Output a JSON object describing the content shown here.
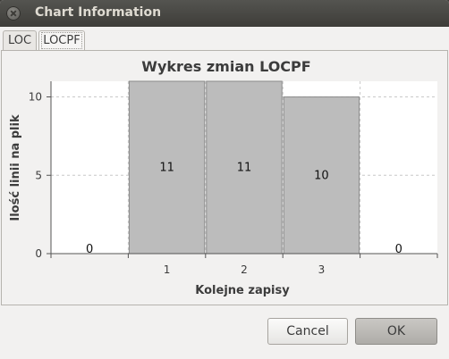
{
  "window": {
    "title": "Chart Information"
  },
  "tabs": [
    {
      "label": "LOC",
      "active": false
    },
    {
      "label": "LOCPF",
      "active": true
    }
  ],
  "buttons": {
    "cancel_label": "Cancel",
    "ok_label": "OK"
  },
  "chart_data": {
    "type": "bar",
    "title": "Wykres zmian LOCPF",
    "xlabel": "Kolejne zapisy",
    "ylabel": "Ilość linii na plik",
    "x": [
      0,
      1,
      2,
      3,
      4
    ],
    "values": [
      0,
      11,
      11,
      10,
      0
    ],
    "data_labels": [
      "0",
      "11",
      "11",
      "10",
      "0"
    ],
    "x_ticks": [
      "1",
      "2",
      "3"
    ],
    "y_ticks": [
      "0",
      "5",
      "10"
    ],
    "ylim": [
      0,
      11
    ],
    "grid": true,
    "bar_color": "#bcbcbc"
  }
}
